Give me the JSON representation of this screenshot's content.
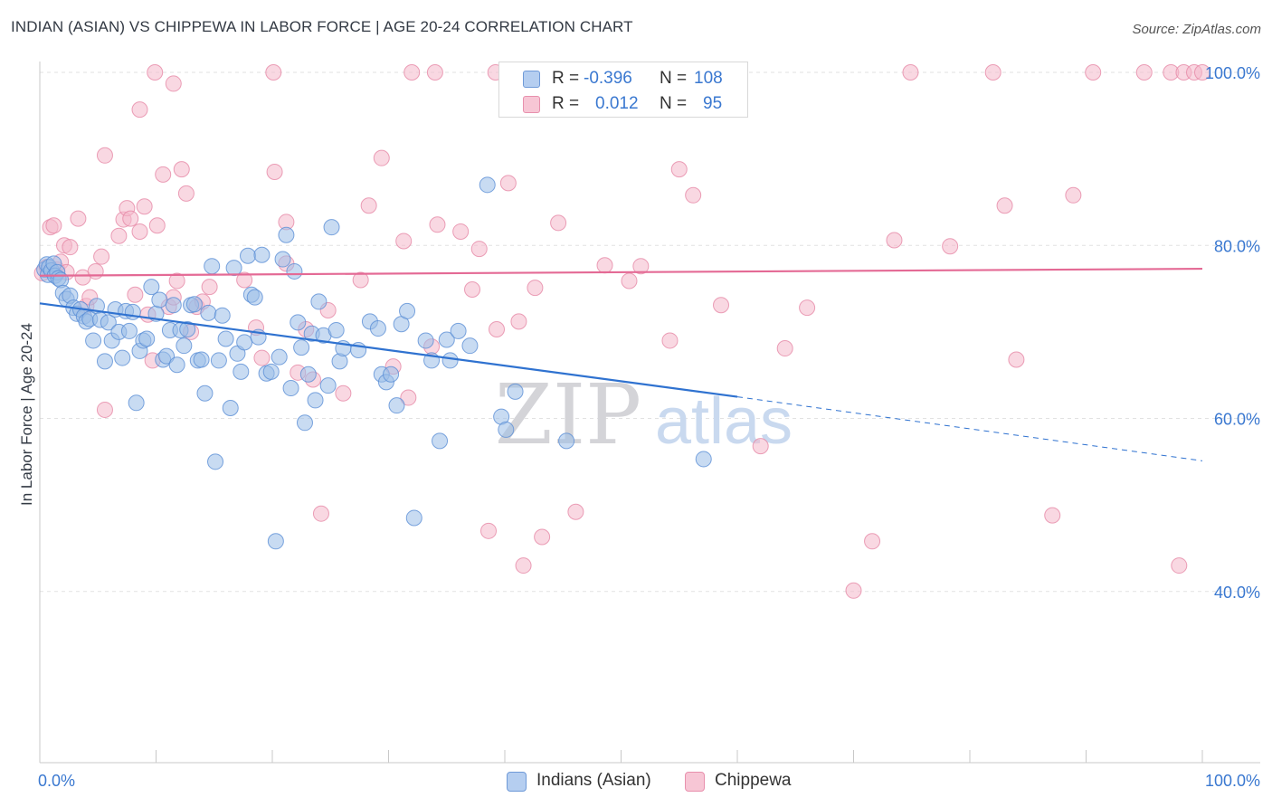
{
  "title": "INDIAN (ASIAN) VS CHIPPEWA IN LABOR FORCE | AGE 20-24 CORRELATION CHART",
  "source": "Source: ZipAtlas.com",
  "watermark": {
    "zip": "ZIP",
    "atlas": "atlas"
  },
  "chart_data": {
    "type": "scatter",
    "title": "INDIAN (ASIAN) VS CHIPPEWA IN LABOR FORCE | AGE 20-24 CORRELATION CHART",
    "xlabel": "",
    "ylabel": "In Labor Force | Age 20-24",
    "xlim": [
      0,
      100
    ],
    "ylim": [
      20,
      102
    ],
    "x_tick_labels": [
      "0.0%",
      "100.0%"
    ],
    "y_ticks": [
      40,
      60,
      80,
      100
    ],
    "y_tick_labels": [
      "40.0%",
      "60.0%",
      "80.0%",
      "100.0%"
    ],
    "grid": true,
    "legend_position": "top-center",
    "series": [
      {
        "name": "Indians (Asian)",
        "color": "#9bbde8",
        "edge_color": "#5b8fd6",
        "line_color": "#2f72d0",
        "R": "-0.396",
        "N": "108",
        "trend": {
          "x0": 0,
          "y0": 73.3,
          "x1": 60,
          "y1": 62.5,
          "dash_to_x": 100,
          "dash_y1": 55.1
        },
        "points": [
          [
            0.4,
            77.2
          ],
          [
            0.6,
            77.8
          ],
          [
            0.7,
            76.6
          ],
          [
            0.8,
            77.5
          ],
          [
            1.0,
            77.1
          ],
          [
            1.2,
            77.9
          ],
          [
            1.3,
            76.5
          ],
          [
            1.5,
            76.9
          ],
          [
            1.6,
            76.2
          ],
          [
            1.8,
            76.0
          ],
          [
            2.0,
            74.5
          ],
          [
            2.3,
            73.8
          ],
          [
            2.6,
            74.2
          ],
          [
            2.9,
            72.8
          ],
          [
            3.2,
            72.1
          ],
          [
            3.5,
            72.6
          ],
          [
            3.8,
            71.8
          ],
          [
            4.0,
            71.2
          ],
          [
            4.3,
            71.5
          ],
          [
            4.6,
            69.0
          ],
          [
            4.9,
            73.0
          ],
          [
            5.2,
            71.4
          ],
          [
            5.6,
            66.6
          ],
          [
            5.9,
            71.1
          ],
          [
            6.2,
            69.0
          ],
          [
            6.5,
            72.6
          ],
          [
            6.8,
            70.0
          ],
          [
            7.1,
            67.0
          ],
          [
            7.4,
            72.4
          ],
          [
            7.7,
            70.1
          ],
          [
            8.0,
            72.3
          ],
          [
            8.3,
            61.8
          ],
          [
            8.6,
            67.8
          ],
          [
            8.9,
            69.0
          ],
          [
            9.2,
            69.2
          ],
          [
            9.6,
            75.2
          ],
          [
            10.0,
            72.1
          ],
          [
            10.3,
            73.7
          ],
          [
            10.6,
            66.8
          ],
          [
            10.9,
            67.2
          ],
          [
            11.2,
            70.2
          ],
          [
            11.5,
            73.1
          ],
          [
            11.8,
            66.2
          ],
          [
            12.1,
            70.2
          ],
          [
            12.4,
            68.4
          ],
          [
            12.7,
            70.3
          ],
          [
            13.0,
            73.1
          ],
          [
            13.3,
            73.2
          ],
          [
            13.6,
            66.7
          ],
          [
            13.9,
            66.8
          ],
          [
            14.2,
            62.9
          ],
          [
            14.5,
            72.2
          ],
          [
            14.8,
            77.6
          ],
          [
            15.1,
            55.0
          ],
          [
            15.4,
            66.7
          ],
          [
            15.7,
            71.9
          ],
          [
            16.0,
            69.2
          ],
          [
            16.4,
            61.2
          ],
          [
            16.7,
            77.4
          ],
          [
            17.0,
            67.5
          ],
          [
            17.3,
            65.4
          ],
          [
            17.6,
            68.8
          ],
          [
            17.9,
            78.8
          ],
          [
            18.2,
            74.3
          ],
          [
            18.5,
            74.0
          ],
          [
            18.8,
            69.4
          ],
          [
            19.1,
            78.9
          ],
          [
            19.5,
            65.2
          ],
          [
            19.9,
            65.4
          ],
          [
            20.3,
            45.8
          ],
          [
            20.6,
            67.1
          ],
          [
            20.9,
            78.4
          ],
          [
            21.2,
            81.2
          ],
          [
            21.6,
            63.5
          ],
          [
            21.9,
            77.0
          ],
          [
            22.2,
            71.1
          ],
          [
            22.5,
            68.2
          ],
          [
            22.8,
            59.5
          ],
          [
            23.1,
            65.1
          ],
          [
            23.4,
            69.8
          ],
          [
            23.7,
            62.1
          ],
          [
            24.0,
            73.5
          ],
          [
            24.4,
            69.6
          ],
          [
            24.8,
            63.8
          ],
          [
            25.1,
            82.1
          ],
          [
            25.5,
            70.2
          ],
          [
            25.8,
            66.6
          ],
          [
            26.1,
            68.1
          ],
          [
            27.4,
            67.9
          ],
          [
            28.4,
            71.2
          ],
          [
            29.1,
            70.4
          ],
          [
            29.4,
            65.1
          ],
          [
            29.8,
            64.2
          ],
          [
            30.2,
            65.1
          ],
          [
            30.7,
            61.5
          ],
          [
            31.1,
            70.9
          ],
          [
            31.6,
            72.4
          ],
          [
            32.2,
            48.5
          ],
          [
            33.2,
            69.0
          ],
          [
            33.7,
            66.7
          ],
          [
            34.4,
            57.4
          ],
          [
            35.0,
            69.1
          ],
          [
            35.3,
            66.7
          ],
          [
            36.0,
            70.1
          ],
          [
            37.0,
            68.4
          ],
          [
            38.5,
            87.0
          ],
          [
            39.7,
            60.2
          ],
          [
            40.1,
            58.7
          ],
          [
            40.9,
            63.1
          ],
          [
            45.3,
            57.4
          ],
          [
            57.1,
            55.3
          ]
        ]
      },
      {
        "name": "Chippewa",
        "color": "#f4b8cb",
        "edge_color": "#e688a6",
        "line_color": "#e46a95",
        "R": "0.012",
        "N": "95",
        "trend": {
          "x0": 0,
          "y0": 76.5,
          "x1": 100,
          "y1": 77.3
        },
        "points": [
          [
            0.2,
            76.8
          ],
          [
            0.6,
            77.5
          ],
          [
            0.9,
            82.1
          ],
          [
            1.2,
            82.3
          ],
          [
            1.5,
            77.2
          ],
          [
            1.8,
            78.1
          ],
          [
            2.1,
            80.0
          ],
          [
            2.3,
            76.9
          ],
          [
            2.6,
            79.8
          ],
          [
            3.3,
            83.1
          ],
          [
            3.7,
            76.3
          ],
          [
            4.0,
            73.0
          ],
          [
            4.3,
            74.0
          ],
          [
            4.8,
            77.0
          ],
          [
            5.3,
            78.7
          ],
          [
            5.6,
            61.0
          ],
          [
            6.8,
            81.1
          ],
          [
            7.2,
            83.0
          ],
          [
            7.5,
            84.3
          ],
          [
            7.8,
            83.1
          ],
          [
            8.2,
            74.3
          ],
          [
            8.6,
            81.6
          ],
          [
            9.0,
            84.5
          ],
          [
            9.3,
            72.0
          ],
          [
            9.7,
            66.7
          ],
          [
            10.1,
            82.3
          ],
          [
            10.6,
            88.2
          ],
          [
            11.1,
            72.9
          ],
          [
            11.5,
            74.0
          ],
          [
            11.8,
            75.9
          ],
          [
            12.2,
            88.8
          ],
          [
            12.6,
            86.0
          ],
          [
            13.0,
            70.0
          ],
          [
            13.5,
            72.9
          ],
          [
            14.0,
            73.5
          ],
          [
            14.6,
            75.2
          ],
          [
            17.6,
            76.0
          ],
          [
            18.6,
            70.5
          ],
          [
            19.1,
            67.0
          ],
          [
            20.2,
            88.5
          ],
          [
            21.2,
            82.7
          ],
          [
            22.2,
            65.3
          ],
          [
            22.9,
            70.3
          ],
          [
            23.5,
            64.5
          ],
          [
            24.2,
            49.0
          ],
          [
            24.8,
            72.5
          ],
          [
            26.1,
            62.9
          ],
          [
            27.6,
            76.0
          ],
          [
            29.4,
            90.1
          ],
          [
            30.4,
            66.0
          ],
          [
            31.3,
            80.5
          ],
          [
            31.7,
            62.4
          ],
          [
            33.7,
            68.3
          ],
          [
            34.2,
            82.4
          ],
          [
            36.2,
            81.6
          ],
          [
            37.2,
            74.9
          ],
          [
            37.8,
            79.6
          ],
          [
            38.6,
            47.0
          ],
          [
            39.3,
            70.3
          ],
          [
            40.3,
            87.2
          ],
          [
            41.2,
            71.2
          ],
          [
            41.6,
            43.0
          ],
          [
            42.6,
            75.1
          ],
          [
            43.2,
            46.3
          ],
          [
            44.6,
            82.6
          ],
          [
            46.1,
            49.2
          ],
          [
            48.6,
            77.7
          ],
          [
            50.7,
            75.9
          ],
          [
            51.7,
            77.6
          ],
          [
            54.2,
            69.0
          ],
          [
            55.0,
            88.8
          ],
          [
            56.2,
            85.8
          ],
          [
            58.6,
            73.1
          ],
          [
            62.0,
            56.8
          ],
          [
            64.1,
            68.1
          ],
          [
            66.0,
            72.8
          ],
          [
            70.0,
            40.1
          ],
          [
            71.6,
            45.8
          ],
          [
            73.5,
            80.6
          ],
          [
            78.3,
            79.9
          ],
          [
            83.0,
            84.6
          ],
          [
            84.0,
            66.8
          ],
          [
            87.1,
            48.8
          ],
          [
            88.9,
            85.8
          ],
          [
            98.0,
            43.0
          ],
          [
            9.9,
            100
          ],
          [
            20.1,
            100
          ],
          [
            32.0,
            100
          ],
          [
            34.0,
            100
          ],
          [
            39.2,
            100
          ],
          [
            45.5,
            100
          ],
          [
            74.9,
            100
          ],
          [
            82.0,
            100
          ],
          [
            90.6,
            100
          ],
          [
            95.0,
            100
          ],
          [
            97.3,
            100
          ],
          [
            98.4,
            100
          ],
          [
            99.3,
            100
          ],
          [
            100,
            100
          ],
          [
            8.6,
            95.7
          ],
          [
            11.5,
            98.7
          ],
          [
            5.6,
            90.4
          ],
          [
            21.2,
            77.9
          ],
          [
            28.3,
            84.6
          ]
        ]
      }
    ]
  }
}
